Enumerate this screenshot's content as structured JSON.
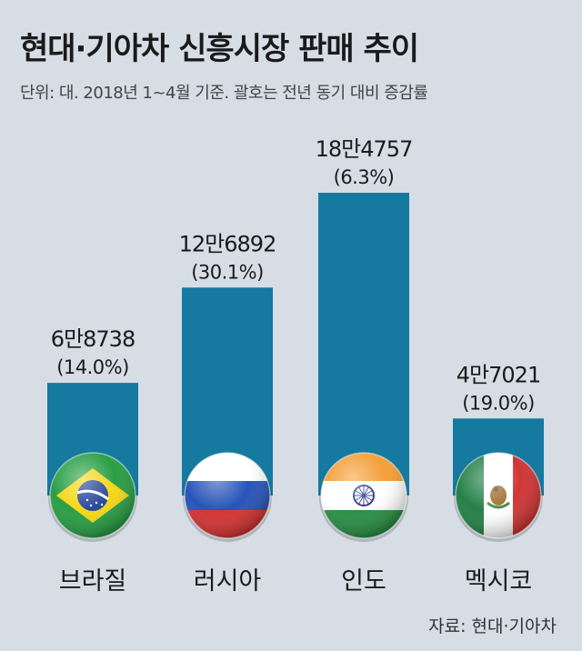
{
  "header": {
    "title": "현대·기아차 신흥시장 판매 추이",
    "subtitle": "단위: 대. 2018년 1~4월 기준. 괄호는 전년 동기 대비 증감률"
  },
  "source": "자료: 현대·기아차",
  "colors": {
    "background": "#d6dde5",
    "bar": "#1579a0",
    "text": "#1a1a1a"
  },
  "chart_data": {
    "type": "bar",
    "title": "현대·기아차 신흥시장 판매 추이",
    "categories": [
      "브라질",
      "러시아",
      "인도",
      "멕시코"
    ],
    "values": [
      68738,
      126892,
      184757,
      47021
    ],
    "value_labels": [
      "6만8738",
      "12만6892",
      "18만4757",
      "4만7021"
    ],
    "change_labels": [
      "(14.0%)",
      "(30.1%)",
      "(6.3%)",
      "(19.0%)"
    ],
    "change_pct": [
      14.0,
      30.1,
      6.3,
      19.0
    ],
    "flags": [
      "brazil-flag-icon",
      "russia-flag-icon",
      "india-flag-icon",
      "mexico-flag-icon"
    ],
    "ylim": [
      0,
      184757
    ],
    "grid": false,
    "legend": "none"
  }
}
